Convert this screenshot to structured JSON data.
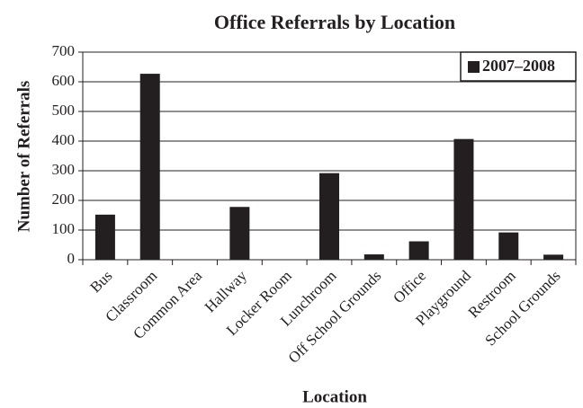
{
  "chart_data": {
    "type": "bar",
    "title": "Office Referrals by Location",
    "x_label": "Location",
    "y_label": "Number of Referrals",
    "categories": [
      "Bus",
      "Classroom",
      "Common Area",
      "Hallway",
      "Locker Room",
      "Lunchroom",
      "Off School Grounds",
      "Office",
      "Playground",
      "Restroom",
      "School Grounds"
    ],
    "series": [
      {
        "name": "2007–2008",
        "color": "#231f20",
        "values": [
          152,
          627,
          0,
          178,
          0,
          292,
          18,
          62,
          407,
          92,
          17
        ]
      }
    ],
    "ylim": [
      0,
      700
    ],
    "yticks": [
      0,
      100,
      200,
      300,
      400,
      500,
      600,
      700
    ],
    "grid": true,
    "legend": "top-right"
  }
}
